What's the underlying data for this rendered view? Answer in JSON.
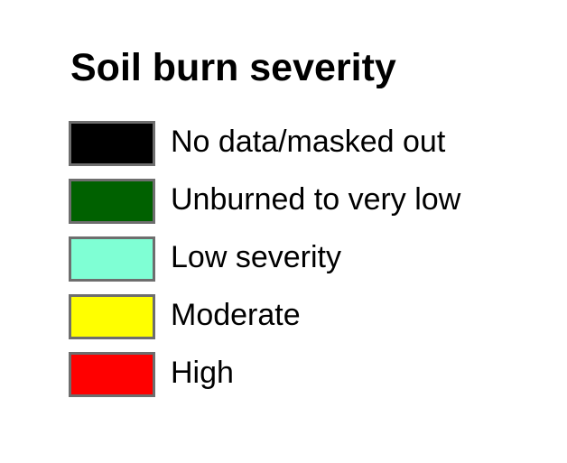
{
  "legend": {
    "title": "Soil burn severity",
    "items": [
      {
        "label": "No data/masked out",
        "color": "#000000"
      },
      {
        "label": "Unburned to very low",
        "color": "#006100"
      },
      {
        "label": "Low severity",
        "color": "#7fffd4"
      },
      {
        "label": "Moderate",
        "color": "#ffff00"
      },
      {
        "label": "High",
        "color": "#ff0000"
      }
    ],
    "border_color": "#6e6e6e"
  }
}
